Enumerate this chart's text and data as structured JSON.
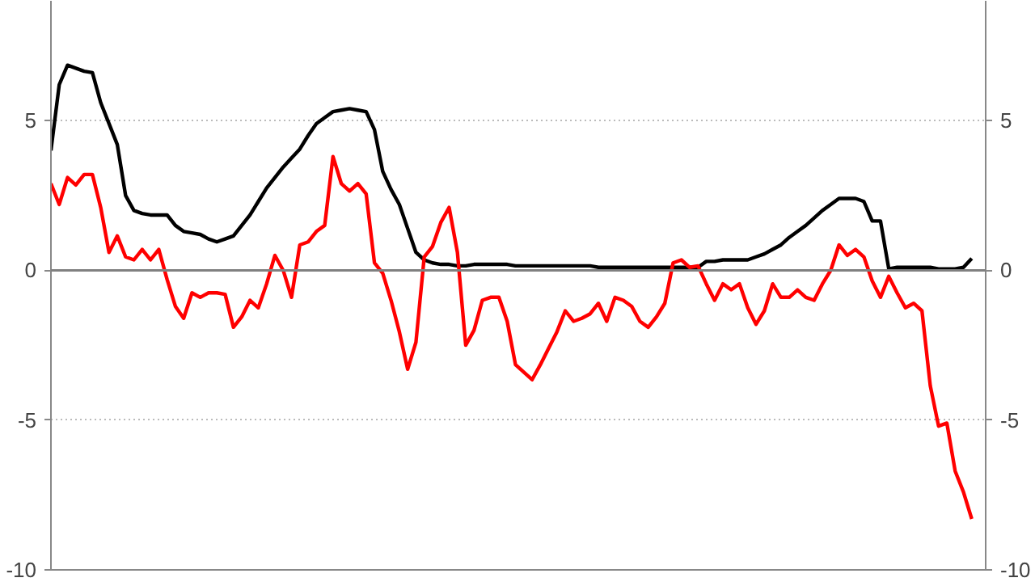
{
  "chart_data": {
    "type": "line",
    "categories": [
      null,
      null,
      null,
      null,
      null,
      null,
      null,
      null,
      null,
      null,
      null,
      null,
      null,
      null,
      null,
      null,
      null,
      null,
      null,
      null,
      null,
      null,
      null,
      null,
      null,
      null,
      null,
      null,
      null,
      null,
      null,
      null,
      null,
      null,
      null,
      null,
      null,
      null,
      null,
      null,
      null,
      null,
      null,
      null,
      null,
      null,
      null,
      null,
      null,
      null,
      null,
      null,
      null,
      null,
      null,
      null,
      null,
      null,
      null,
      null,
      null,
      null,
      null,
      null,
      null,
      null,
      null,
      null,
      null,
      null,
      null,
      null,
      null,
      null,
      null,
      null,
      null,
      null,
      null,
      null,
      null,
      null,
      null,
      null,
      null,
      null,
      null,
      null,
      null,
      null,
      null,
      null,
      null,
      null,
      null,
      null,
      null,
      null,
      null,
      null,
      null,
      null,
      null,
      null,
      null,
      null,
      null,
      null,
      null,
      null,
      null,
      null
    ],
    "ylim": [
      -10,
      9
    ],
    "yticks": [
      -10,
      -5,
      0,
      5
    ],
    "y2lim": [
      -10,
      9
    ],
    "y2ticks": [
      -10,
      -5,
      0,
      5
    ],
    "tick_labels": "y",
    "grid": "y",
    "line_style": "solid",
    "ref_lines": [
      {
        "axis": "y",
        "value": 0,
        "color": "#808080"
      }
    ],
    "series": [
      {
        "color": "#000000",
        "values": [
          4.0,
          6.2,
          6.85,
          6.75,
          6.65,
          6.6,
          5.6,
          4.9,
          4.2,
          2.5,
          2.0,
          1.9,
          1.85,
          1.85,
          1.85,
          1.5,
          1.3,
          1.25,
          1.2,
          1.05,
          0.95,
          1.05,
          1.15,
          1.5,
          1.85,
          2.3,
          2.75,
          3.1,
          3.45,
          3.75,
          4.05,
          4.5,
          4.9,
          5.1,
          5.3,
          5.35,
          5.4,
          5.35,
          5.3,
          4.7,
          3.3,
          2.7,
          2.2,
          1.4,
          0.6,
          0.35,
          0.25,
          0.2,
          0.2,
          0.15,
          0.15,
          0.2,
          0.2,
          0.2,
          0.2,
          0.2,
          0.15,
          0.15,
          0.15,
          0.15,
          0.15,
          0.15,
          0.15,
          0.15,
          0.15,
          0.15,
          0.1,
          0.1,
          0.1,
          0.1,
          0.1,
          0.1,
          0.1,
          0.1,
          0.1,
          0.1,
          0.1,
          0.1,
          0.1,
          0.3,
          0.3,
          0.35,
          0.35,
          0.35,
          0.35,
          0.45,
          0.55,
          0.7,
          0.85,
          1.1,
          1.3,
          1.5,
          1.75,
          2.0,
          2.2,
          2.4,
          2.4,
          2.4,
          2.3,
          1.65,
          1.65,
          0.05,
          0.1,
          0.1,
          0.1,
          0.1,
          0.1,
          0.05,
          0.05,
          0.05,
          0.1,
          0.4
        ]
      },
      {
        "color": "#ff0000",
        "values": [
          2.9,
          2.2,
          3.1,
          2.85,
          3.2,
          3.2,
          2.1,
          0.6,
          1.15,
          0.45,
          0.35,
          0.7,
          0.35,
          0.7,
          -0.3,
          -1.2,
          -1.6,
          -0.75,
          -0.9,
          -0.75,
          -0.75,
          -0.8,
          -1.9,
          -1.55,
          -1.0,
          -1.25,
          -0.45,
          0.5,
          0.0,
          -0.9,
          0.85,
          0.95,
          1.3,
          1.5,
          3.8,
          2.9,
          2.65,
          2.9,
          2.55,
          0.25,
          -0.1,
          -1.0,
          -2.05,
          -3.3,
          -2.4,
          0.45,
          0.8,
          1.6,
          2.1,
          0.6,
          -2.5,
          -2.0,
          -1.0,
          -0.9,
          -0.9,
          -1.7,
          -3.15,
          -3.4,
          -3.65,
          -3.15,
          -2.6,
          -2.05,
          -1.35,
          -1.7,
          -1.6,
          -1.45,
          -1.1,
          -1.7,
          -0.9,
          -1.0,
          -1.2,
          -1.7,
          -1.9,
          -1.55,
          -1.1,
          0.25,
          0.35,
          0.1,
          0.15,
          -0.45,
          -1.0,
          -0.45,
          -0.65,
          -0.45,
          -1.25,
          -1.8,
          -1.35,
          -0.45,
          -0.9,
          -0.9,
          -0.65,
          -0.9,
          -1.0,
          -0.45,
          0.0,
          0.85,
          0.5,
          0.7,
          0.45,
          -0.35,
          -0.9,
          -0.2,
          -0.75,
          -1.25,
          -1.1,
          -1.35,
          -3.85,
          -5.2,
          -5.1,
          -6.7,
          -7.4,
          -8.3
        ]
      }
    ]
  }
}
